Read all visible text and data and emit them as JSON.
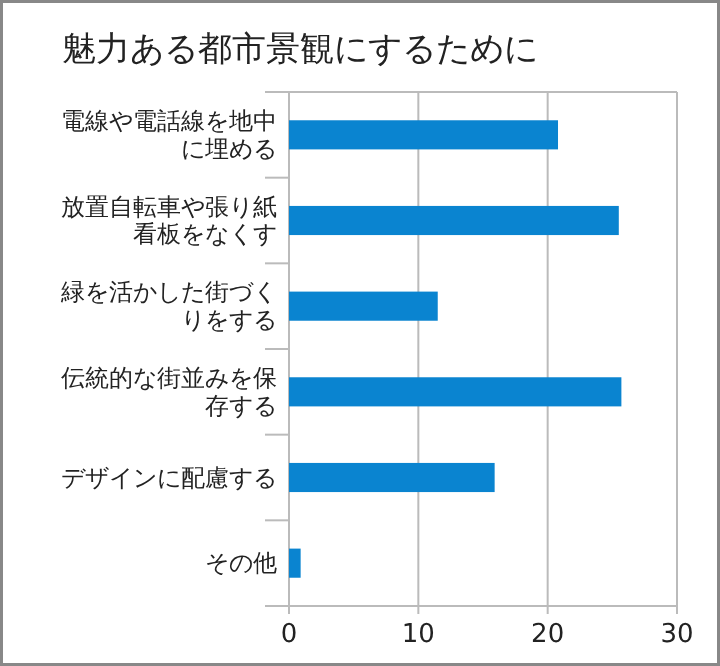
{
  "chart_data": {
    "type": "bar",
    "orientation": "horizontal",
    "title": "魅力ある都市景観にするために",
    "categories": [
      "電線や電話線を地中に埋める",
      "放置自転車や張り紙看板をなくす",
      "緑を活かした街づくりをする",
      "伝統的な街並みを保存する",
      "デザインに配慮する",
      "その他"
    ],
    "values": [
      20.8,
      25.5,
      11.5,
      25.7,
      15.9,
      0.9
    ],
    "color": "#0a84d0",
    "xlim": [
      0,
      30
    ],
    "xticks": [
      0,
      10,
      20,
      30
    ],
    "grid": "x"
  }
}
